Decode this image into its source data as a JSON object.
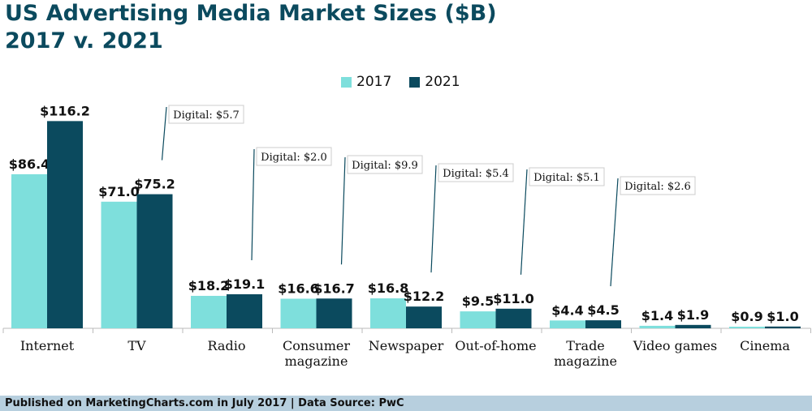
{
  "header": {
    "title_line1": "US Advertising Media Market Sizes ($B)",
    "title_line2": "2017 v. 2021"
  },
  "footer": {
    "text": "Published on MarketingCharts.com in July 2017 | Data Source: PwC"
  },
  "colors": {
    "series_2017": "#7edfdc",
    "series_2021": "#0b4a5e",
    "title": "#0b4a5e",
    "footer_bg": "#b7cfde"
  },
  "chart_data": {
    "type": "bar",
    "categories": [
      "Internet",
      "TV",
      "Radio",
      "Consumer\nmagazine",
      "Newspaper",
      "Out-of-home",
      "Trade\nmagazine",
      "Video games",
      "Cinema"
    ],
    "series": [
      {
        "name": "2017",
        "values": [
          86.4,
          71.0,
          18.2,
          16.6,
          16.8,
          9.5,
          4.4,
          1.4,
          0.9
        ],
        "labels": [
          "$86.4",
          "$71.0",
          "$18.2",
          "$16.6",
          "$16.8",
          "$9.5",
          "$4.4",
          "$1.4",
          "$0.9"
        ]
      },
      {
        "name": "2021",
        "values": [
          116.2,
          75.2,
          19.1,
          16.7,
          12.2,
          11.0,
          4.5,
          1.9,
          1.0
        ],
        "labels": [
          "$116.2",
          "$75.2",
          "$19.1",
          "$16.7",
          "$12.2",
          "$11.0",
          "$4.5",
          "$1.9",
          "$1.0"
        ]
      }
    ],
    "annotations": [
      {
        "category": "TV",
        "text": "Digital: $5.7"
      },
      {
        "category": "Radio",
        "text": "Digital: $2.0"
      },
      {
        "category": "Consumer\nmagazine",
        "text": "Digital: $9.9"
      },
      {
        "category": "Newspaper",
        "text": "Digital: $5.4"
      },
      {
        "category": "Out-of-home",
        "text": "Digital: $5.1"
      },
      {
        "category": "Trade\nmagazine",
        "text": "Digital: $2.6"
      }
    ],
    "legend_position": "top-center",
    "grid": false
  }
}
